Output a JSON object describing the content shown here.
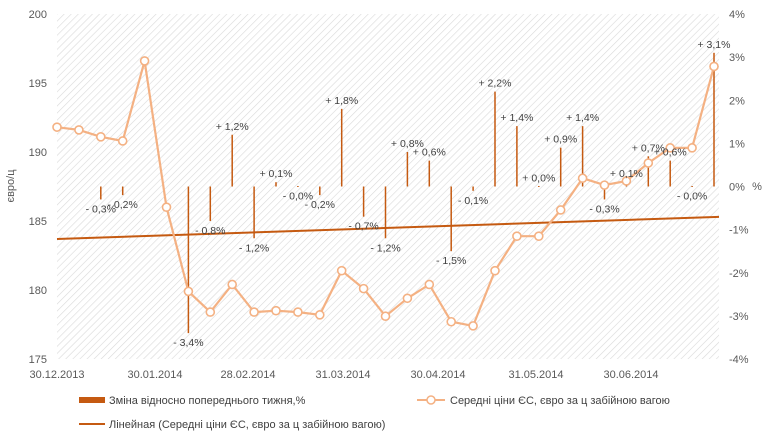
{
  "chart_data": {
    "type": "combo",
    "x_tick_labels": [
      "30.12.2013",
      "30.01.2014",
      "28.02.2014",
      "31.03.2014",
      "30.04.2014",
      "31.05.2014",
      "30.06.2014"
    ],
    "y_left": {
      "label": "євро/ц",
      "min": 175,
      "max": 200,
      "ticks": [
        "175",
        "180",
        "185",
        "190",
        "195",
        "200"
      ]
    },
    "y_right": {
      "label": "%",
      "min": -4,
      "max": 4,
      "ticks": [
        "-4%",
        "-3%",
        "-2%",
        "-1%",
        "0%",
        "1%",
        "2%",
        "3%",
        "4%"
      ]
    },
    "series": [
      {
        "name": "Зміна відносно попереднього тижня,%",
        "kind": "bar",
        "color": "#C55A11",
        "axis": "right",
        "values": [
          null,
          null,
          -0.3,
          -0.2,
          null,
          null,
          -3.4,
          -0.8,
          1.2,
          -1.2,
          0.1,
          -0.0,
          -0.2,
          1.8,
          -0.7,
          -1.2,
          0.8,
          0.6,
          -1.5,
          -0.1,
          2.2,
          1.4,
          0.0,
          0.9,
          1.4,
          -0.3,
          0.1,
          0.7,
          0.6,
          -0.0,
          3.1
        ],
        "labels": [
          null,
          null,
          "- 0,3%",
          "- 0,2%",
          null,
          null,
          "- 3,4%",
          "- 0,8%",
          "+ 1,2%",
          "- 1,2%",
          "+ 0,1%",
          "- 0,0%",
          "- 0,2%",
          "+ 1,8%",
          "- 0,7%",
          "- 1,2%",
          "+ 0,8%",
          "+ 0,6%",
          "- 1,5%",
          "- 0,1%",
          "+ 2,2%",
          "+ 1,4%",
          "+ 0,0%",
          "+ 0,9%",
          "+ 1,4%",
          "- 0,3%",
          "+ 0,1%",
          "+ 0,7%",
          "+ 0,6%",
          "- 0,0%",
          "+ 3,1%"
        ]
      },
      {
        "name": "Середні ціни ЄС, євро за ц забійною вагою",
        "kind": "line",
        "color": "#F4B183",
        "axis": "left",
        "values": [
          191.8,
          191.6,
          191.1,
          190.8,
          196.6,
          186.0,
          179.9,
          178.4,
          180.4,
          178.4,
          178.5,
          178.4,
          178.2,
          181.4,
          180.1,
          178.1,
          179.4,
          180.4,
          177.7,
          177.4,
          181.4,
          183.9,
          183.9,
          185.8,
          188.1,
          187.6,
          187.9,
          189.2,
          190.3,
          190.3,
          196.2
        ]
      },
      {
        "name": "Лінейная (Середні ціни ЄС, євро за ц забійною вагою)",
        "kind": "trendline",
        "color": "#C55A11",
        "axis": "left",
        "start": 183.7,
        "end": 185.3
      }
    ]
  }
}
